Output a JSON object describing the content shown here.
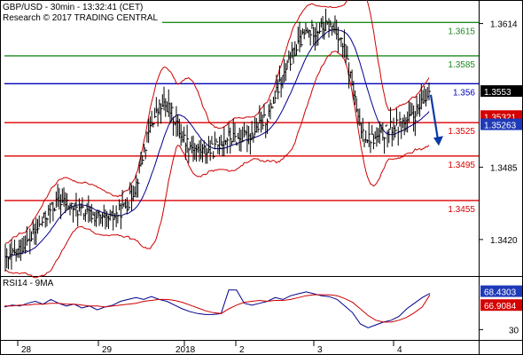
{
  "header": {
    "symbol_line": "GBP/USD - 30min - 13:32:41 (CET)",
    "copyright_line": "Research © 2017 TRADING CENTRAL"
  },
  "rsi_panel": {
    "label": "RSI14 - 9MA"
  },
  "colors": {
    "price": "#000000",
    "bollinger": "#cc0000",
    "moving_average": "#00008b",
    "resistance": "#1f8a1f",
    "pivot": "#0000bb",
    "support": "#dd0000",
    "arrow": "#0a3aa8",
    "rsi_line": "#00008b",
    "rsi_ma": "#cc0000"
  },
  "chart_data": [
    {
      "type": "candlestick",
      "title": "GBP/USD - 30min",
      "ylim": [
        1.3388,
        1.3632
      ],
      "y_ticks": [
        "1.3614",
        "1.3485",
        "1.3420"
      ],
      "x_ticks": [
        "28",
        "29",
        "2018",
        "2",
        "3",
        "4"
      ],
      "price_series": [
        1.34,
        1.3405,
        1.3412,
        1.3418,
        1.3428,
        1.3438,
        1.3448,
        1.3455,
        1.3452,
        1.3448,
        1.3445,
        1.3442,
        1.344,
        1.3436,
        1.344,
        1.3446,
        1.3454,
        1.347,
        1.35,
        1.3525,
        1.3538,
        1.354,
        1.3528,
        1.3512,
        1.3505,
        1.35,
        1.35,
        1.35,
        1.3508,
        1.3512,
        1.351,
        1.3512,
        1.3515,
        1.3522,
        1.353,
        1.3548,
        1.3565,
        1.3582,
        1.3595,
        1.3605,
        1.3608,
        1.361,
        1.3612,
        1.3608,
        1.359,
        1.356,
        1.352,
        1.3512,
        1.351,
        1.3515,
        1.352,
        1.3522,
        1.3526,
        1.353,
        1.354,
        1.3553
      ],
      "current_price": "1.3553",
      "levels": [
        {
          "value": 1.3615,
          "label": "1.3615",
          "kind": "resistance"
        },
        {
          "value": 1.3585,
          "label": "1.3585",
          "kind": "resistance"
        },
        {
          "value": 1.356,
          "label": "1.356",
          "kind": "pivot"
        },
        {
          "value": 1.3525,
          "label": "1.3525",
          "kind": "support"
        },
        {
          "value": 1.3495,
          "label": "1.3495",
          "kind": "support"
        },
        {
          "value": 1.3455,
          "label": "1.3455",
          "kind": "support"
        }
      ],
      "price_tags": [
        {
          "value": 1.3553,
          "label": "1.3553",
          "style": "current"
        },
        {
          "value": 1.35321,
          "label": "1.35321",
          "style": "bollinger"
        },
        {
          "value": 1.35263,
          "label": "1.35263",
          "style": "moving_average"
        }
      ],
      "arrow": {
        "from": 1.355,
        "to": 1.3505,
        "direction": "down"
      }
    },
    {
      "type": "line",
      "title": "RSI14 - 9MA",
      "ylim": [
        20,
        85
      ],
      "y_ticks": [
        "30"
      ],
      "series": [
        {
          "name": "RSI14",
          "values": [
            54,
            56,
            55,
            58,
            60,
            57,
            62,
            58,
            55,
            57,
            53,
            55,
            51,
            54,
            56,
            60,
            62,
            64,
            62,
            65,
            62,
            60,
            56,
            52,
            49,
            47,
            46,
            46,
            47,
            72,
            72,
            58,
            56,
            58,
            60,
            64,
            62,
            66,
            68,
            70,
            68,
            66,
            65,
            62,
            55,
            48,
            36,
            32,
            35,
            38,
            40,
            44,
            52,
            58,
            64,
            68.43
          ]
        },
        {
          "name": "9MA",
          "values": [
            55,
            55,
            56,
            56,
            57,
            57,
            58,
            58,
            57,
            57,
            56,
            55,
            55,
            54,
            55,
            56,
            57,
            58,
            60,
            61,
            62,
            62,
            61,
            59,
            56,
            53,
            50,
            48,
            47,
            52,
            56,
            59,
            60,
            61,
            60,
            61,
            61,
            62,
            64,
            66,
            67,
            67,
            67,
            66,
            63,
            59,
            52,
            45,
            40,
            38,
            38,
            40,
            43,
            48,
            54,
            66.91
          ]
        }
      ],
      "tags": [
        {
          "value": 68.4303,
          "label": "68.4303",
          "style": "rsi"
        },
        {
          "value": 66.9084,
          "label": "66.9084",
          "style": "ma"
        }
      ]
    }
  ]
}
